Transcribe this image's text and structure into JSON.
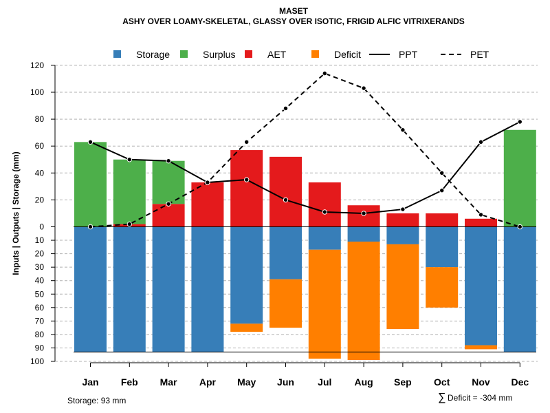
{
  "chart_data": {
    "type": "bar",
    "title": "MASET",
    "subtitle": "ASHY OVER LOAMY-SKELETAL, GLASSY OVER ISOTIC, FRIGID ALFIC VITRIXERANDS",
    "ylabel": "Inputs | Outputs | Storage    (mm)",
    "categories": [
      "Jan",
      "Feb",
      "Mar",
      "Apr",
      "May",
      "Jun",
      "Jul",
      "Aug",
      "Sep",
      "Oct",
      "Nov",
      "Dec"
    ],
    "upper_ylim": [
      0,
      120
    ],
    "upper_ticks": [
      "0",
      "20",
      "40",
      "60",
      "80",
      "100",
      "120"
    ],
    "lower_ylim": [
      0,
      100
    ],
    "lower_ticks": [
      "10",
      "20",
      "30",
      "40",
      "50",
      "60",
      "70",
      "80",
      "90",
      "100"
    ],
    "storage_capacity": 93,
    "colors": {
      "storage": "#377EB8",
      "surplus": "#4DAF4A",
      "aet": "#E41A1C",
      "deficit": "#FF7F00"
    },
    "legend": [
      {
        "key": "storage",
        "label": "Storage",
        "kind": "box"
      },
      {
        "key": "surplus",
        "label": "Surplus",
        "kind": "box"
      },
      {
        "key": "aet",
        "label": "AET",
        "kind": "box"
      },
      {
        "key": "deficit",
        "label": "Deficit",
        "kind": "box"
      },
      {
        "key": "ppt",
        "label": "PPT",
        "kind": "solid"
      },
      {
        "key": "pet",
        "label": "PET",
        "kind": "dashed"
      }
    ],
    "series": [
      {
        "name": "AET",
        "values": [
          0,
          2,
          17,
          33,
          57,
          52,
          33,
          16,
          10,
          10,
          6,
          0
        ]
      },
      {
        "name": "Surplus",
        "values": [
          63,
          48,
          32,
          0,
          0,
          0,
          0,
          0,
          0,
          0,
          0,
          72
        ]
      },
      {
        "name": "Storage",
        "values": [
          93,
          93,
          93,
          93,
          72,
          39,
          17,
          11,
          13,
          30,
          88,
          93
        ]
      },
      {
        "name": "Deficit",
        "values": [
          0,
          0,
          0,
          0,
          6,
          36,
          81,
          88,
          63,
          30,
          3,
          0
        ]
      },
      {
        "name": "PPT",
        "values": [
          63,
          50,
          49,
          33,
          35,
          20,
          11,
          10,
          13,
          27,
          63,
          78
        ]
      },
      {
        "name": "PET",
        "values": [
          0,
          2,
          17,
          33,
          63,
          88,
          114,
          103,
          72,
          40,
          9,
          0
        ]
      }
    ],
    "footer_left": "Storage: 93 mm",
    "footer_right_symbol": "∑",
    "footer_right": "Deficit = -304 mm"
  }
}
